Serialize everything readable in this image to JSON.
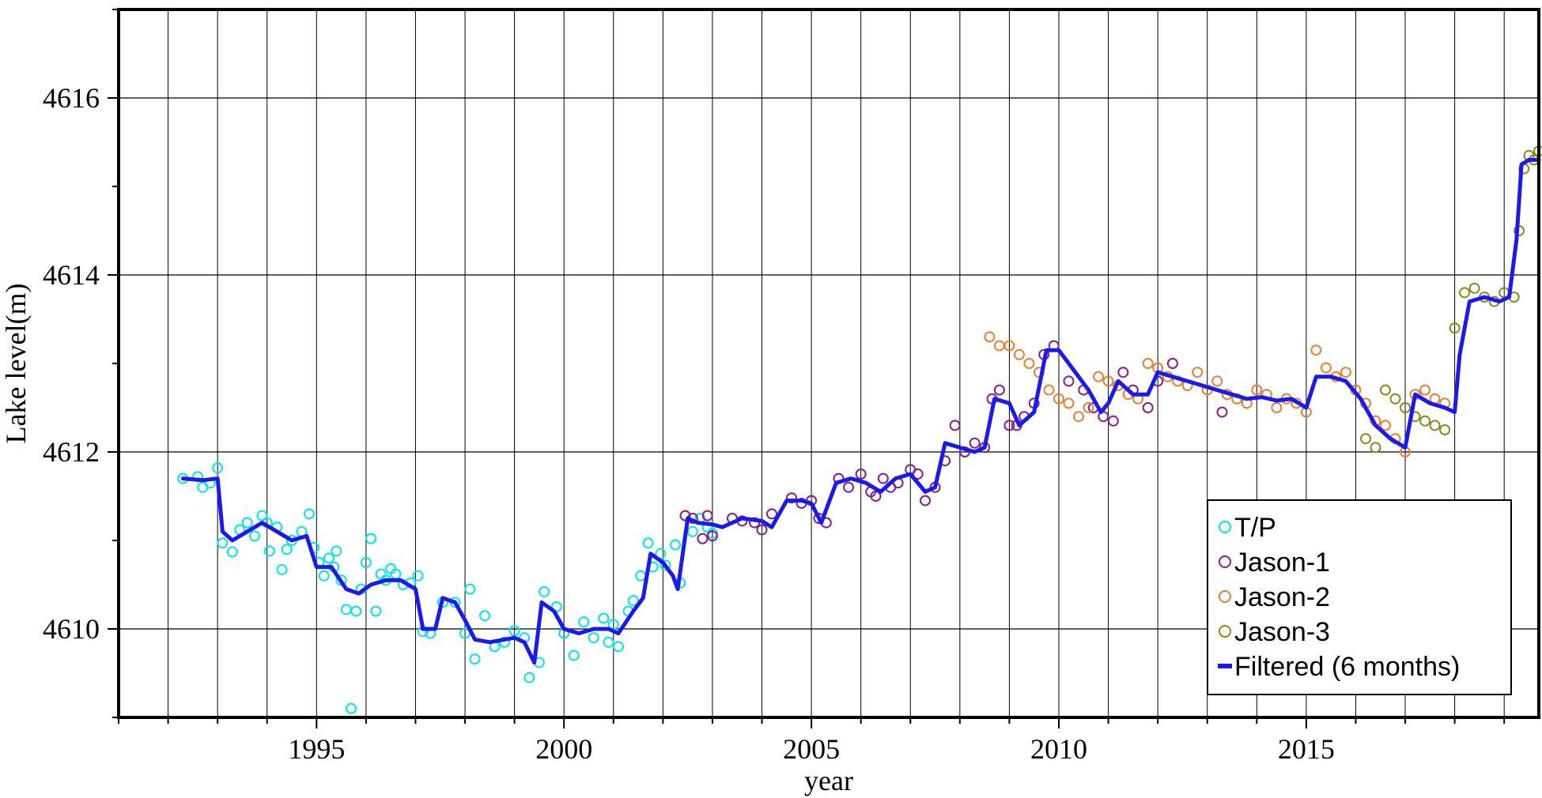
{
  "chart_data": {
    "type": "scatter",
    "title": "",
    "xlabel": "year",
    "ylabel": "Lake level(m)",
    "xlim": [
      1991.0,
      2019.7
    ],
    "ylim": [
      4609.0,
      4617.0
    ],
    "x_ticks": [
      1995,
      2000,
      2005,
      2010,
      2015
    ],
    "y_ticks": [
      4610,
      4612,
      4614,
      4616
    ],
    "grid": true,
    "legend_position": "bottom-right",
    "series": [
      {
        "name": "T/P",
        "marker": "open-circle",
        "color": "#00e5ee",
        "points": [
          [
            1992.3,
            4611.7
          ],
          [
            1992.6,
            4611.72
          ],
          [
            1992.7,
            4611.6
          ],
          [
            1992.85,
            4611.65
          ],
          [
            1993.0,
            4611.82
          ],
          [
            1993.1,
            4610.97
          ],
          [
            1993.3,
            4610.87
          ],
          [
            1993.45,
            4611.12
          ],
          [
            1993.6,
            4611.2
          ],
          [
            1993.75,
            4611.05
          ],
          [
            1993.9,
            4611.28
          ],
          [
            1994.0,
            4611.2
          ],
          [
            1994.05,
            4610.88
          ],
          [
            1994.2,
            4611.15
          ],
          [
            1994.3,
            4610.67
          ],
          [
            1994.4,
            4610.9
          ],
          [
            1994.5,
            4611.0
          ],
          [
            1994.7,
            4611.1
          ],
          [
            1994.85,
            4611.3
          ],
          [
            1994.95,
            4610.92
          ],
          [
            1995.05,
            4610.75
          ],
          [
            1995.15,
            4610.6
          ],
          [
            1995.25,
            4610.8
          ],
          [
            1995.35,
            4610.7
          ],
          [
            1995.4,
            4610.88
          ],
          [
            1995.5,
            4610.55
          ],
          [
            1995.6,
            4610.22
          ],
          [
            1995.7,
            4609.1
          ],
          [
            1995.8,
            4610.2
          ],
          [
            1995.9,
            4610.45
          ],
          [
            1996.0,
            4610.75
          ],
          [
            1996.1,
            4611.02
          ],
          [
            1996.2,
            4610.2
          ],
          [
            1996.3,
            4610.62
          ],
          [
            1996.4,
            4610.55
          ],
          [
            1996.5,
            4610.68
          ],
          [
            1996.6,
            4610.62
          ],
          [
            1996.75,
            4610.5
          ],
          [
            1996.9,
            4610.52
          ],
          [
            1997.05,
            4610.6
          ],
          [
            1997.15,
            4609.97
          ],
          [
            1997.3,
            4609.95
          ],
          [
            1997.55,
            4610.3
          ],
          [
            1997.8,
            4610.3
          ],
          [
            1998.0,
            4609.95
          ],
          [
            1998.1,
            4610.45
          ],
          [
            1998.2,
            4609.66
          ],
          [
            1998.4,
            4610.15
          ],
          [
            1998.6,
            4609.8
          ],
          [
            1998.8,
            4609.85
          ],
          [
            1999.0,
            4609.98
          ],
          [
            1999.2,
            4609.9
          ],
          [
            1999.3,
            4609.45
          ],
          [
            1999.5,
            4609.62
          ],
          [
            1999.6,
            4610.42
          ],
          [
            1999.85,
            4610.25
          ],
          [
            2000.0,
            4609.95
          ],
          [
            2000.2,
            4609.7
          ],
          [
            2000.4,
            4610.08
          ],
          [
            2000.6,
            4609.9
          ],
          [
            2000.8,
            4610.12
          ],
          [
            2000.9,
            4609.85
          ],
          [
            2001.0,
            4610.05
          ],
          [
            2001.1,
            4609.8
          ],
          [
            2001.3,
            4610.2
          ],
          [
            2001.4,
            4610.32
          ],
          [
            2001.55,
            4610.6
          ],
          [
            2001.7,
            4610.97
          ],
          [
            2001.8,
            4610.7
          ],
          [
            2001.95,
            4610.85
          ],
          [
            2002.05,
            4610.72
          ],
          [
            2002.25,
            4610.95
          ],
          [
            2002.35,
            4610.52
          ],
          [
            2002.6,
            4611.1
          ],
          [
            2002.75,
            4611.25
          ],
          [
            2002.9,
            4611.15
          ],
          [
            2003.0,
            4611.08
          ]
        ]
      },
      {
        "name": "Jason-1",
        "marker": "open-circle",
        "color": "#8b1c8b",
        "points": [
          [
            2002.45,
            4611.28
          ],
          [
            2002.6,
            4611.25
          ],
          [
            2002.8,
            4611.02
          ],
          [
            2002.9,
            4611.28
          ],
          [
            2003.0,
            4611.05
          ],
          [
            2003.4,
            4611.25
          ],
          [
            2003.6,
            4611.22
          ],
          [
            2003.85,
            4611.2
          ],
          [
            2004.0,
            4611.12
          ],
          [
            2004.2,
            4611.3
          ],
          [
            2004.6,
            4611.48
          ],
          [
            2004.8,
            4611.42
          ],
          [
            2005.0,
            4611.45
          ],
          [
            2005.15,
            4611.25
          ],
          [
            2005.3,
            4611.2
          ],
          [
            2005.55,
            4611.7
          ],
          [
            2005.75,
            4611.6
          ],
          [
            2006.0,
            4611.75
          ],
          [
            2006.2,
            4611.55
          ],
          [
            2006.3,
            4611.5
          ],
          [
            2006.45,
            4611.7
          ],
          [
            2006.6,
            4611.6
          ],
          [
            2006.75,
            4611.65
          ],
          [
            2007.0,
            4611.8
          ],
          [
            2007.15,
            4611.75
          ],
          [
            2007.3,
            4611.45
          ],
          [
            2007.5,
            4611.6
          ],
          [
            2007.7,
            4611.9
          ],
          [
            2007.9,
            4612.3
          ],
          [
            2008.1,
            4612.0
          ],
          [
            2008.3,
            4612.1
          ],
          [
            2008.5,
            4612.05
          ],
          [
            2008.65,
            4612.6
          ],
          [
            2008.8,
            4612.7
          ],
          [
            2009.0,
            4612.3
          ],
          [
            2009.15,
            4612.3
          ],
          [
            2009.3,
            4612.4
          ],
          [
            2009.5,
            4612.55
          ],
          [
            2009.7,
            4613.1
          ],
          [
            2009.9,
            4613.2
          ],
          [
            2010.2,
            4612.8
          ],
          [
            2010.5,
            4612.7
          ],
          [
            2010.7,
            4612.5
          ],
          [
            2010.9,
            4612.4
          ],
          [
            2011.1,
            4612.35
          ],
          [
            2011.3,
            4612.9
          ],
          [
            2011.5,
            4612.7
          ],
          [
            2011.8,
            4612.5
          ],
          [
            2012.0,
            4612.8
          ],
          [
            2012.3,
            4613.0
          ],
          [
            2013.3,
            4612.45
          ]
        ]
      },
      {
        "name": "Jason-2",
        "marker": "open-circle",
        "color": "#ee7d30",
        "points": [
          [
            2008.6,
            4613.3
          ],
          [
            2008.8,
            4613.2
          ],
          [
            2009.0,
            4613.2
          ],
          [
            2009.2,
            4613.1
          ],
          [
            2009.4,
            4613.0
          ],
          [
            2009.6,
            4612.9
          ],
          [
            2009.8,
            4612.7
          ],
          [
            2010.0,
            4612.6
          ],
          [
            2010.2,
            4612.55
          ],
          [
            2010.4,
            4612.4
          ],
          [
            2010.6,
            4612.5
          ],
          [
            2010.8,
            4612.85
          ],
          [
            2011.0,
            4612.8
          ],
          [
            2011.2,
            4612.75
          ],
          [
            2011.4,
            4612.65
          ],
          [
            2011.6,
            4612.6
          ],
          [
            2011.8,
            4613.0
          ],
          [
            2012.0,
            4612.95
          ],
          [
            2012.2,
            4612.85
          ],
          [
            2012.4,
            4612.8
          ],
          [
            2012.6,
            4612.75
          ],
          [
            2012.8,
            4612.9
          ],
          [
            2013.0,
            4612.7
          ],
          [
            2013.2,
            4612.8
          ],
          [
            2013.4,
            4612.65
          ],
          [
            2013.6,
            4612.6
          ],
          [
            2013.8,
            4612.55
          ],
          [
            2014.0,
            4612.7
          ],
          [
            2014.2,
            4612.65
          ],
          [
            2014.4,
            4612.5
          ],
          [
            2014.6,
            4612.6
          ],
          [
            2014.8,
            4612.55
          ],
          [
            2015.0,
            4612.45
          ],
          [
            2015.2,
            4613.15
          ],
          [
            2015.4,
            4612.95
          ],
          [
            2015.6,
            4612.85
          ],
          [
            2015.8,
            4612.9
          ],
          [
            2016.0,
            4612.7
          ],
          [
            2016.2,
            4612.55
          ],
          [
            2016.4,
            4612.35
          ],
          [
            2016.6,
            4612.3
          ],
          [
            2016.8,
            4612.15
          ],
          [
            2017.0,
            4612.0
          ],
          [
            2017.2,
            4612.65
          ],
          [
            2017.4,
            4612.7
          ],
          [
            2017.6,
            4612.6
          ],
          [
            2017.8,
            4612.55
          ]
        ]
      },
      {
        "name": "Jason-3",
        "marker": "open-circle",
        "color": "#8a8a1c",
        "points": [
          [
            2016.2,
            4612.15
          ],
          [
            2016.4,
            4612.05
          ],
          [
            2016.6,
            4612.7
          ],
          [
            2016.8,
            4612.6
          ],
          [
            2017.0,
            4612.5
          ],
          [
            2017.2,
            4612.4
          ],
          [
            2017.4,
            4612.35
          ],
          [
            2017.6,
            4612.3
          ],
          [
            2017.8,
            4612.25
          ],
          [
            2018.0,
            4613.4
          ],
          [
            2018.2,
            4613.8
          ],
          [
            2018.4,
            4613.85
          ],
          [
            2018.6,
            4613.75
          ],
          [
            2018.8,
            4613.7
          ],
          [
            2019.0,
            4613.8
          ],
          [
            2019.2,
            4613.75
          ],
          [
            2019.3,
            4614.5
          ],
          [
            2019.4,
            4615.2
          ],
          [
            2019.5,
            4615.35
          ],
          [
            2019.6,
            4615.3
          ],
          [
            2019.7,
            4615.4
          ]
        ]
      }
    ],
    "filtered": {
      "name": "Filtered (6 months)",
      "color": "#1a1aee",
      "points": [
        [
          1992.3,
          4611.7
        ],
        [
          1992.7,
          4611.68
        ],
        [
          1993.0,
          4611.7
        ],
        [
          1993.1,
          4611.1
        ],
        [
          1993.3,
          4611.0
        ],
        [
          1993.6,
          4611.1
        ],
        [
          1993.9,
          4611.2
        ],
        [
          1994.2,
          4611.1
        ],
        [
          1994.5,
          4611.0
        ],
        [
          1994.8,
          4611.05
        ],
        [
          1995.0,
          4610.7
        ],
        [
          1995.3,
          4610.7
        ],
        [
          1995.6,
          4610.45
        ],
        [
          1995.85,
          4610.4
        ],
        [
          1996.1,
          4610.5
        ],
        [
          1996.4,
          4610.55
        ],
        [
          1996.7,
          4610.55
        ],
        [
          1997.0,
          4610.45
        ],
        [
          1997.15,
          4610.0
        ],
        [
          1997.4,
          4610.0
        ],
        [
          1997.55,
          4610.35
        ],
        [
          1997.8,
          4610.3
        ],
        [
          1998.0,
          4610.1
        ],
        [
          1998.2,
          4609.88
        ],
        [
          1998.5,
          4609.85
        ],
        [
          1998.8,
          4609.88
        ],
        [
          1999.0,
          4609.9
        ],
        [
          1999.2,
          4609.85
        ],
        [
          1999.4,
          4609.62
        ],
        [
          1999.55,
          4610.3
        ],
        [
          1999.8,
          4610.2
        ],
        [
          2000.0,
          4610.0
        ],
        [
          2000.3,
          4609.95
        ],
        [
          2000.6,
          4610.0
        ],
        [
          2000.9,
          4610.0
        ],
        [
          2001.1,
          4609.95
        ],
        [
          2001.4,
          4610.2
        ],
        [
          2001.6,
          4610.35
        ],
        [
          2001.75,
          4610.85
        ],
        [
          2002.0,
          4610.75
        ],
        [
          2002.2,
          4610.6
        ],
        [
          2002.3,
          4610.45
        ],
        [
          2002.5,
          4611.25
        ],
        [
          2002.7,
          4611.2
        ],
        [
          2003.0,
          4611.18
        ],
        [
          2003.2,
          4611.15
        ],
        [
          2003.6,
          4611.25
        ],
        [
          2004.0,
          4611.22
        ],
        [
          2004.2,
          4611.15
        ],
        [
          2004.5,
          4611.45
        ],
        [
          2004.8,
          4611.45
        ],
        [
          2005.0,
          4611.42
        ],
        [
          2005.2,
          4611.2
        ],
        [
          2005.5,
          4611.65
        ],
        [
          2005.8,
          4611.7
        ],
        [
          2006.1,
          4611.65
        ],
        [
          2006.4,
          4611.55
        ],
        [
          2006.7,
          4611.7
        ],
        [
          2007.0,
          4611.75
        ],
        [
          2007.3,
          4611.55
        ],
        [
          2007.5,
          4611.6
        ],
        [
          2007.7,
          4612.1
        ],
        [
          2008.0,
          4612.05
        ],
        [
          2008.3,
          4612.0
        ],
        [
          2008.5,
          4612.05
        ],
        [
          2008.7,
          4612.6
        ],
        [
          2009.0,
          4612.55
        ],
        [
          2009.2,
          4612.3
        ],
        [
          2009.5,
          4612.45
        ],
        [
          2009.75,
          4613.15
        ],
        [
          2010.0,
          4613.15
        ],
        [
          2010.2,
          4613.0
        ],
        [
          2010.4,
          4612.85
        ],
        [
          2010.6,
          4612.7
        ],
        [
          2010.85,
          4612.45
        ],
        [
          2011.0,
          4612.55
        ],
        [
          2011.2,
          4612.8
        ],
        [
          2011.5,
          4612.65
        ],
        [
          2011.8,
          4612.65
        ],
        [
          2012.0,
          4612.9
        ],
        [
          2012.3,
          4612.85
        ],
        [
          2012.6,
          4612.8
        ],
        [
          2012.9,
          4612.75
        ],
        [
          2013.2,
          4612.7
        ],
        [
          2013.5,
          4612.65
        ],
        [
          2013.8,
          4612.6
        ],
        [
          2014.1,
          4612.62
        ],
        [
          2014.4,
          4612.58
        ],
        [
          2014.7,
          4612.6
        ],
        [
          2015.0,
          4612.5
        ],
        [
          2015.2,
          4612.85
        ],
        [
          2015.5,
          4612.85
        ],
        [
          2015.8,
          4612.8
        ],
        [
          2016.1,
          4612.6
        ],
        [
          2016.4,
          4612.3
        ],
        [
          2016.7,
          4612.15
        ],
        [
          2017.0,
          4612.05
        ],
        [
          2017.2,
          4612.65
        ],
        [
          2017.5,
          4612.55
        ],
        [
          2017.8,
          4612.5
        ],
        [
          2018.0,
          4612.45
        ],
        [
          2018.1,
          4613.1
        ],
        [
          2018.3,
          4613.7
        ],
        [
          2018.6,
          4613.75
        ],
        [
          2018.9,
          4613.7
        ],
        [
          2019.1,
          4613.75
        ],
        [
          2019.25,
          4614.4
        ],
        [
          2019.35,
          4615.25
        ],
        [
          2019.5,
          4615.3
        ],
        [
          2019.7,
          4615.3
        ]
      ]
    }
  }
}
